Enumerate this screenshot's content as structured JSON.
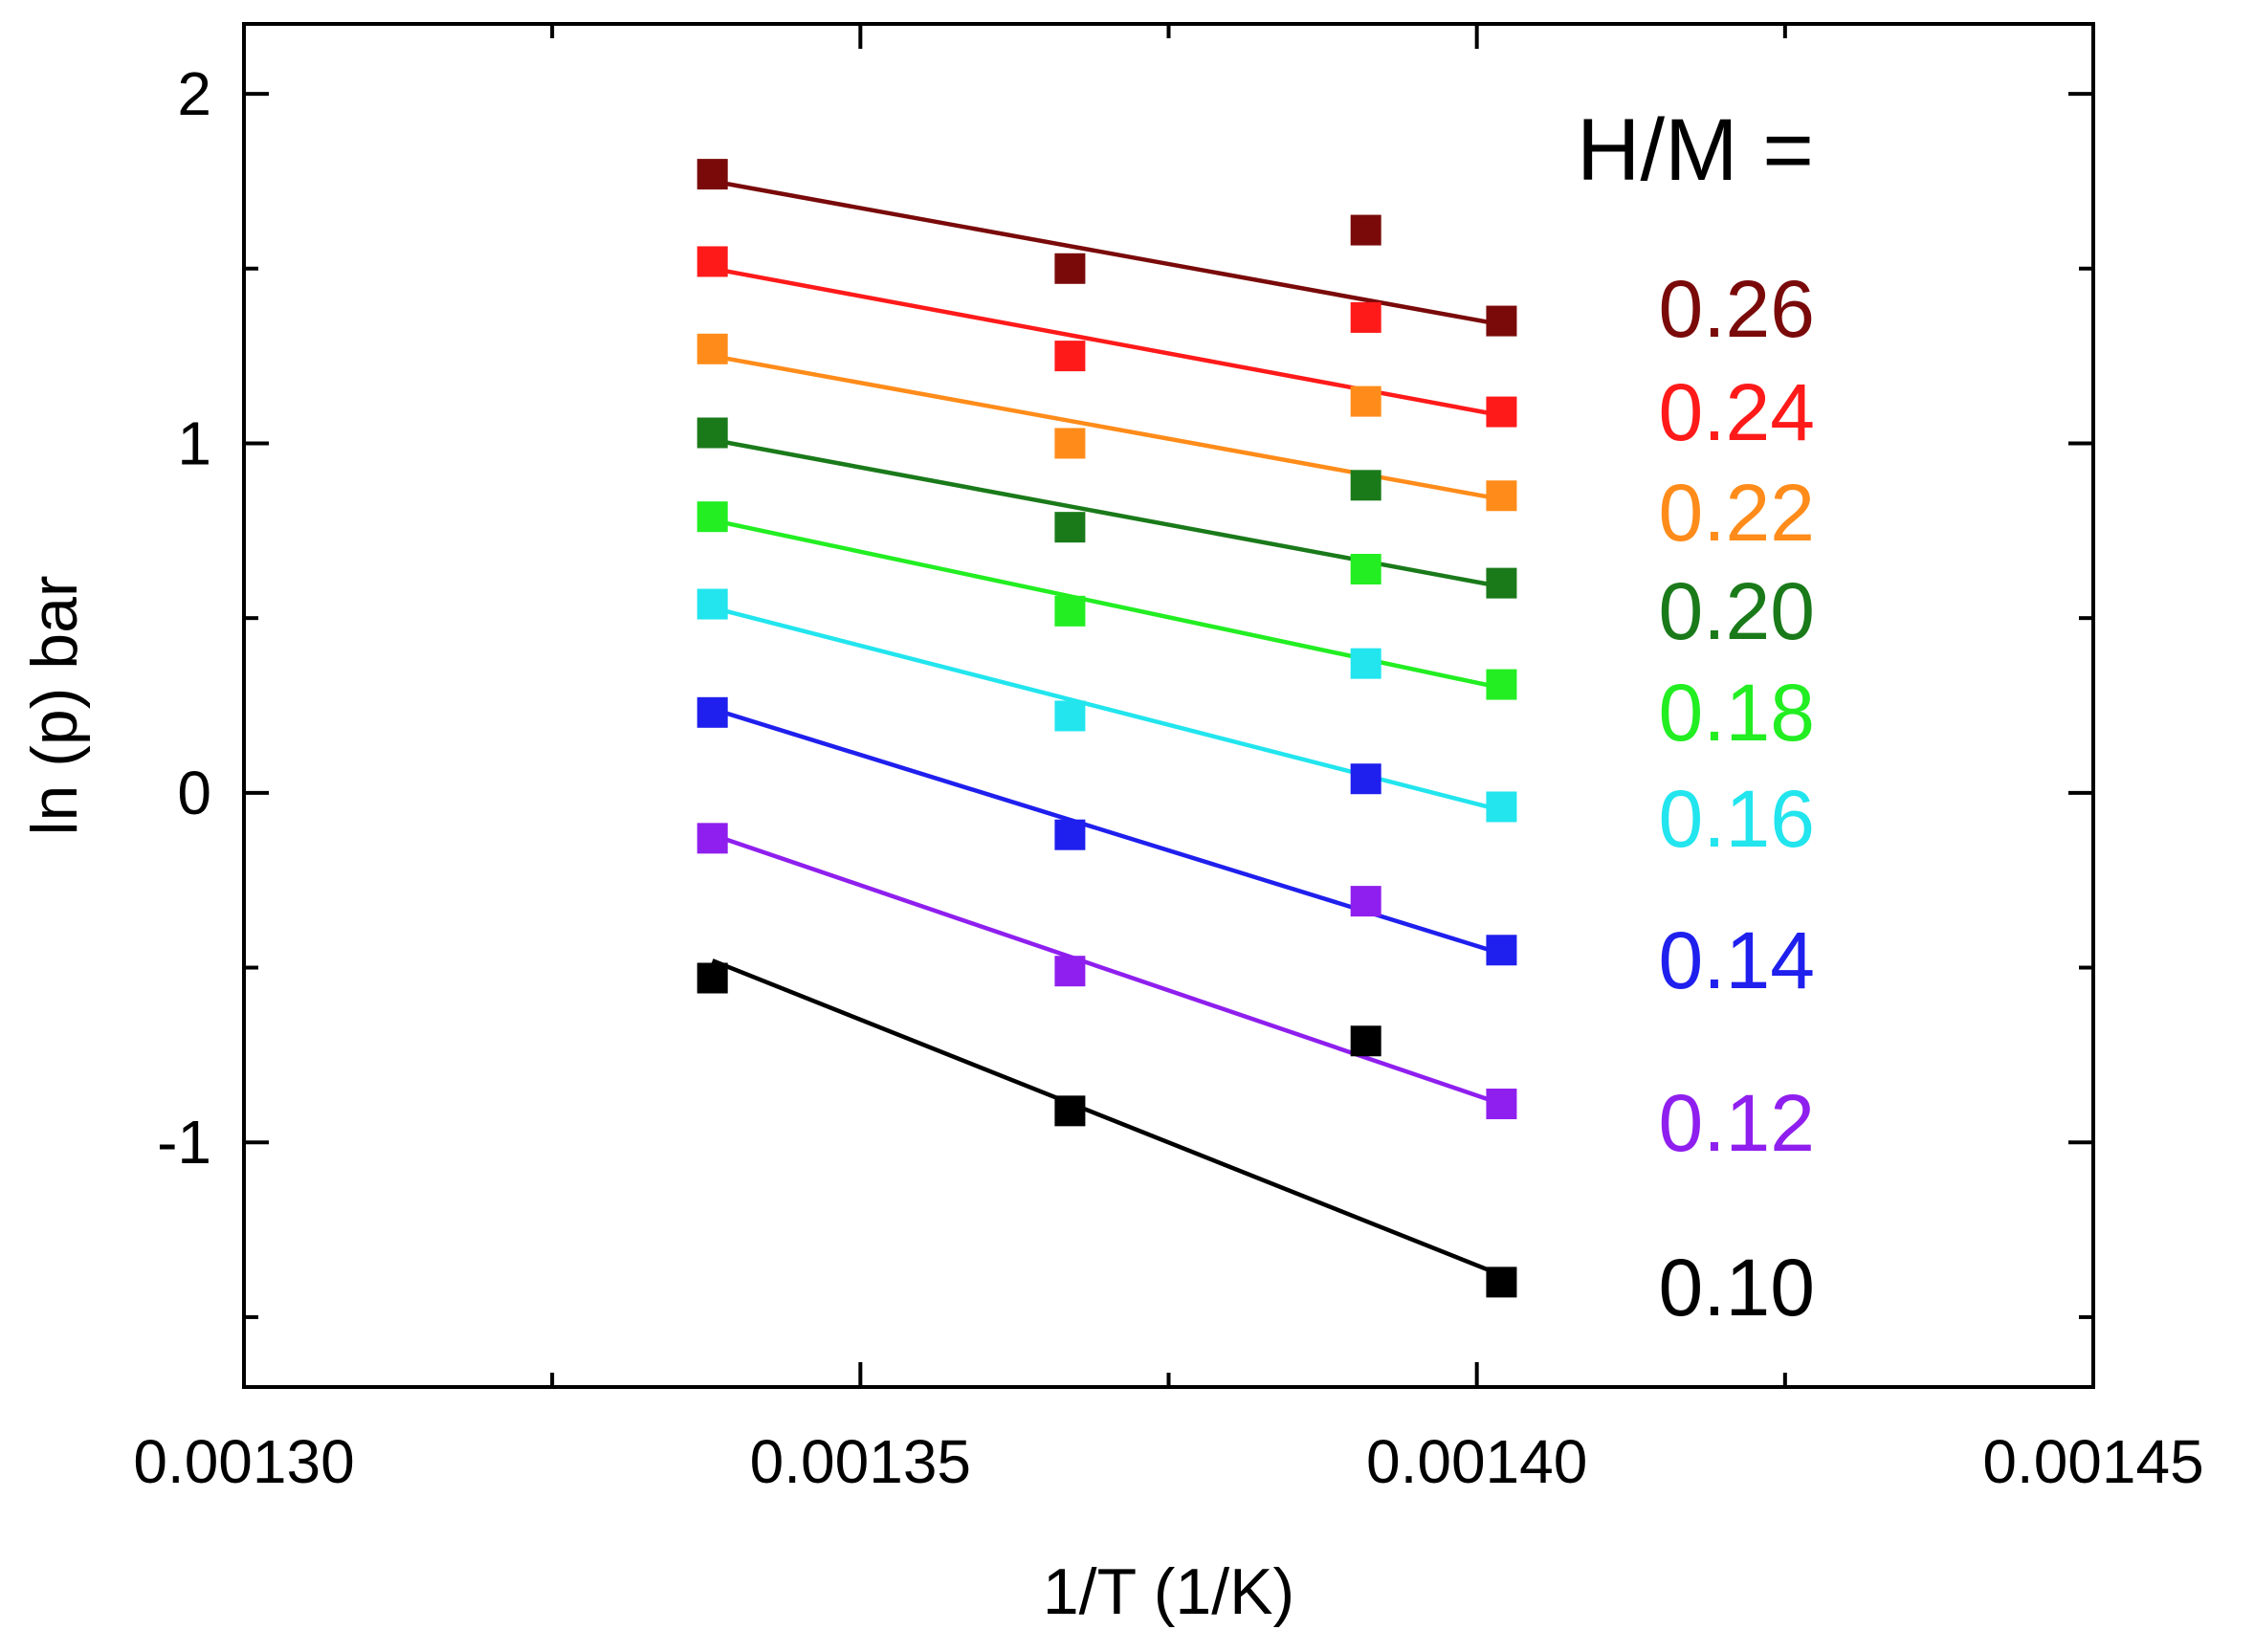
{
  "chart_data": {
    "type": "line",
    "title": "",
    "xlabel": "1/T (1/K)",
    "ylabel": "ln (p) bar",
    "xlim": [
      0.0013,
      0.00145
    ],
    "ylim": [
      -1.7,
      2.2
    ],
    "grid": false,
    "x_ticks": [
      "0.00130",
      "0.00135",
      "0.00140",
      "0.00145"
    ],
    "y_ticks": [
      "-1",
      "0",
      "1",
      "2"
    ],
    "x_tick_values": [
      0.0013,
      0.00135,
      0.0014,
      0.00145
    ],
    "y_tick_values": [
      -1,
      0,
      1,
      2
    ],
    "x_minor_tick_values": [
      0.001325,
      0.001375,
      0.001425
    ],
    "y_minor_tick_values": [
      -1.5,
      -0.5,
      0.5,
      1.5
    ],
    "legend_title": "H/M =",
    "legend_position": "right",
    "x": [
      0.001338,
      0.001391,
      0.001367,
      0.001402
    ],
    "series": [
      {
        "name": "0.26",
        "color": "#7a0a0a",
        "values": [
          1.77,
          1.61,
          1.5,
          1.35
        ],
        "fit": [
          1.75,
          1.34
        ]
      },
      {
        "name": "0.24",
        "color": "#ff1a1a",
        "values": [
          1.52,
          1.36,
          1.25,
          1.09
        ],
        "fit": [
          1.5,
          1.08
        ]
      },
      {
        "name": "0.22",
        "color": "#ff8c1a",
        "values": [
          1.27,
          1.12,
          1.0,
          0.85
        ],
        "fit": [
          1.25,
          0.84
        ]
      },
      {
        "name": "0.20",
        "color": "#1a7a1a",
        "values": [
          1.03,
          0.88,
          0.76,
          0.6
        ],
        "fit": [
          1.01,
          0.59
        ]
      },
      {
        "name": "0.18",
        "color": "#22ee22",
        "values": [
          0.79,
          0.64,
          0.52,
          0.31
        ],
        "fit": [
          0.78,
          0.3
        ]
      },
      {
        "name": "0.16",
        "color": "#22e5ee",
        "values": [
          0.54,
          0.37,
          0.22,
          -0.04
        ],
        "fit": [
          0.53,
          -0.05
        ]
      },
      {
        "name": "0.14",
        "color": "#1f1fee",
        "values": [
          0.23,
          0.04,
          -0.12,
          -0.45
        ],
        "fit": [
          0.24,
          -0.46
        ]
      },
      {
        "name": "0.12",
        "color": "#8f1fee",
        "values": [
          -0.13,
          -0.31,
          -0.51,
          -0.89
        ],
        "fit": [
          -0.12,
          -0.89
        ]
      },
      {
        "name": "0.10",
        "color": "#000000",
        "values": [
          -0.53,
          -0.71,
          -0.91,
          -1.4
        ],
        "fit": [
          -0.48,
          -1.38
        ]
      }
    ]
  }
}
